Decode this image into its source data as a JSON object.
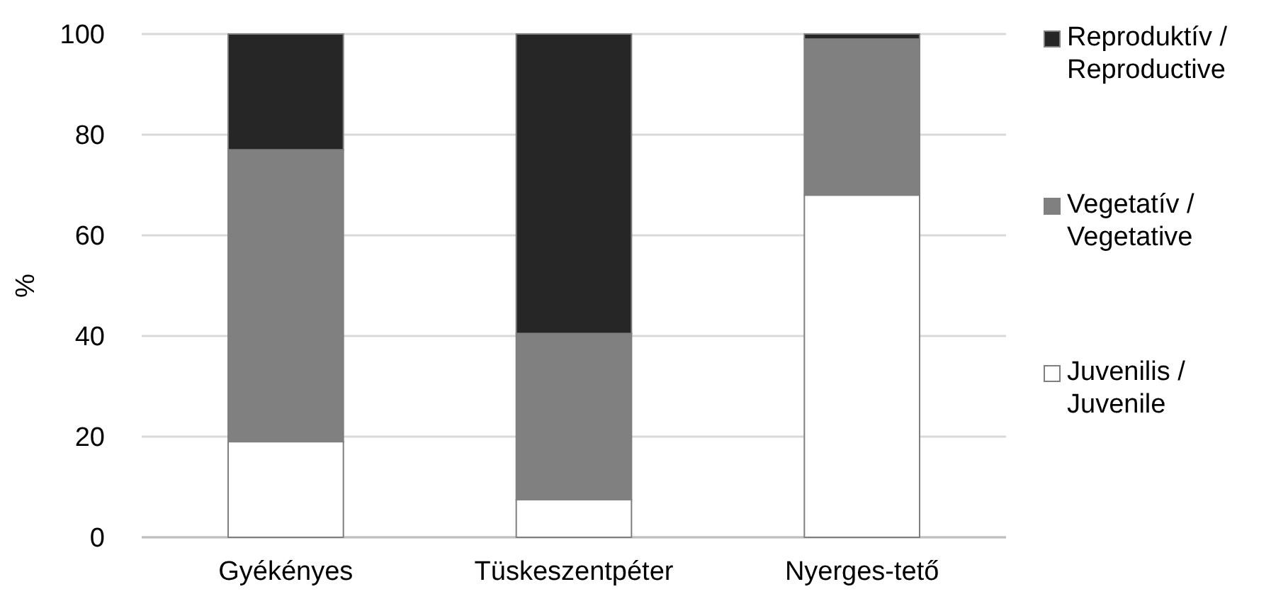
{
  "chart_data": {
    "type": "bar",
    "ylabel": "%",
    "categories": [
      "Gyékényes",
      "Tüskeszentpéter",
      "Nyerges-tető"
    ],
    "stacked": true,
    "series": [
      {
        "name": "Juvenilis / Juvenile",
        "color": "#ffffff",
        "values": [
          19,
          7.5,
          68
        ]
      },
      {
        "name": "Vegetatív / Vegetative",
        "color": "#808080",
        "values": [
          58,
          33,
          31
        ]
      },
      {
        "name": "Reproduktív / Reproductive",
        "color": "#262626",
        "values": [
          23,
          59.5,
          1
        ]
      }
    ],
    "ylim": [
      0,
      100
    ],
    "yticks": [
      0,
      20,
      40,
      60,
      80,
      100
    ],
    "grid": "y",
    "legend": "right"
  }
}
